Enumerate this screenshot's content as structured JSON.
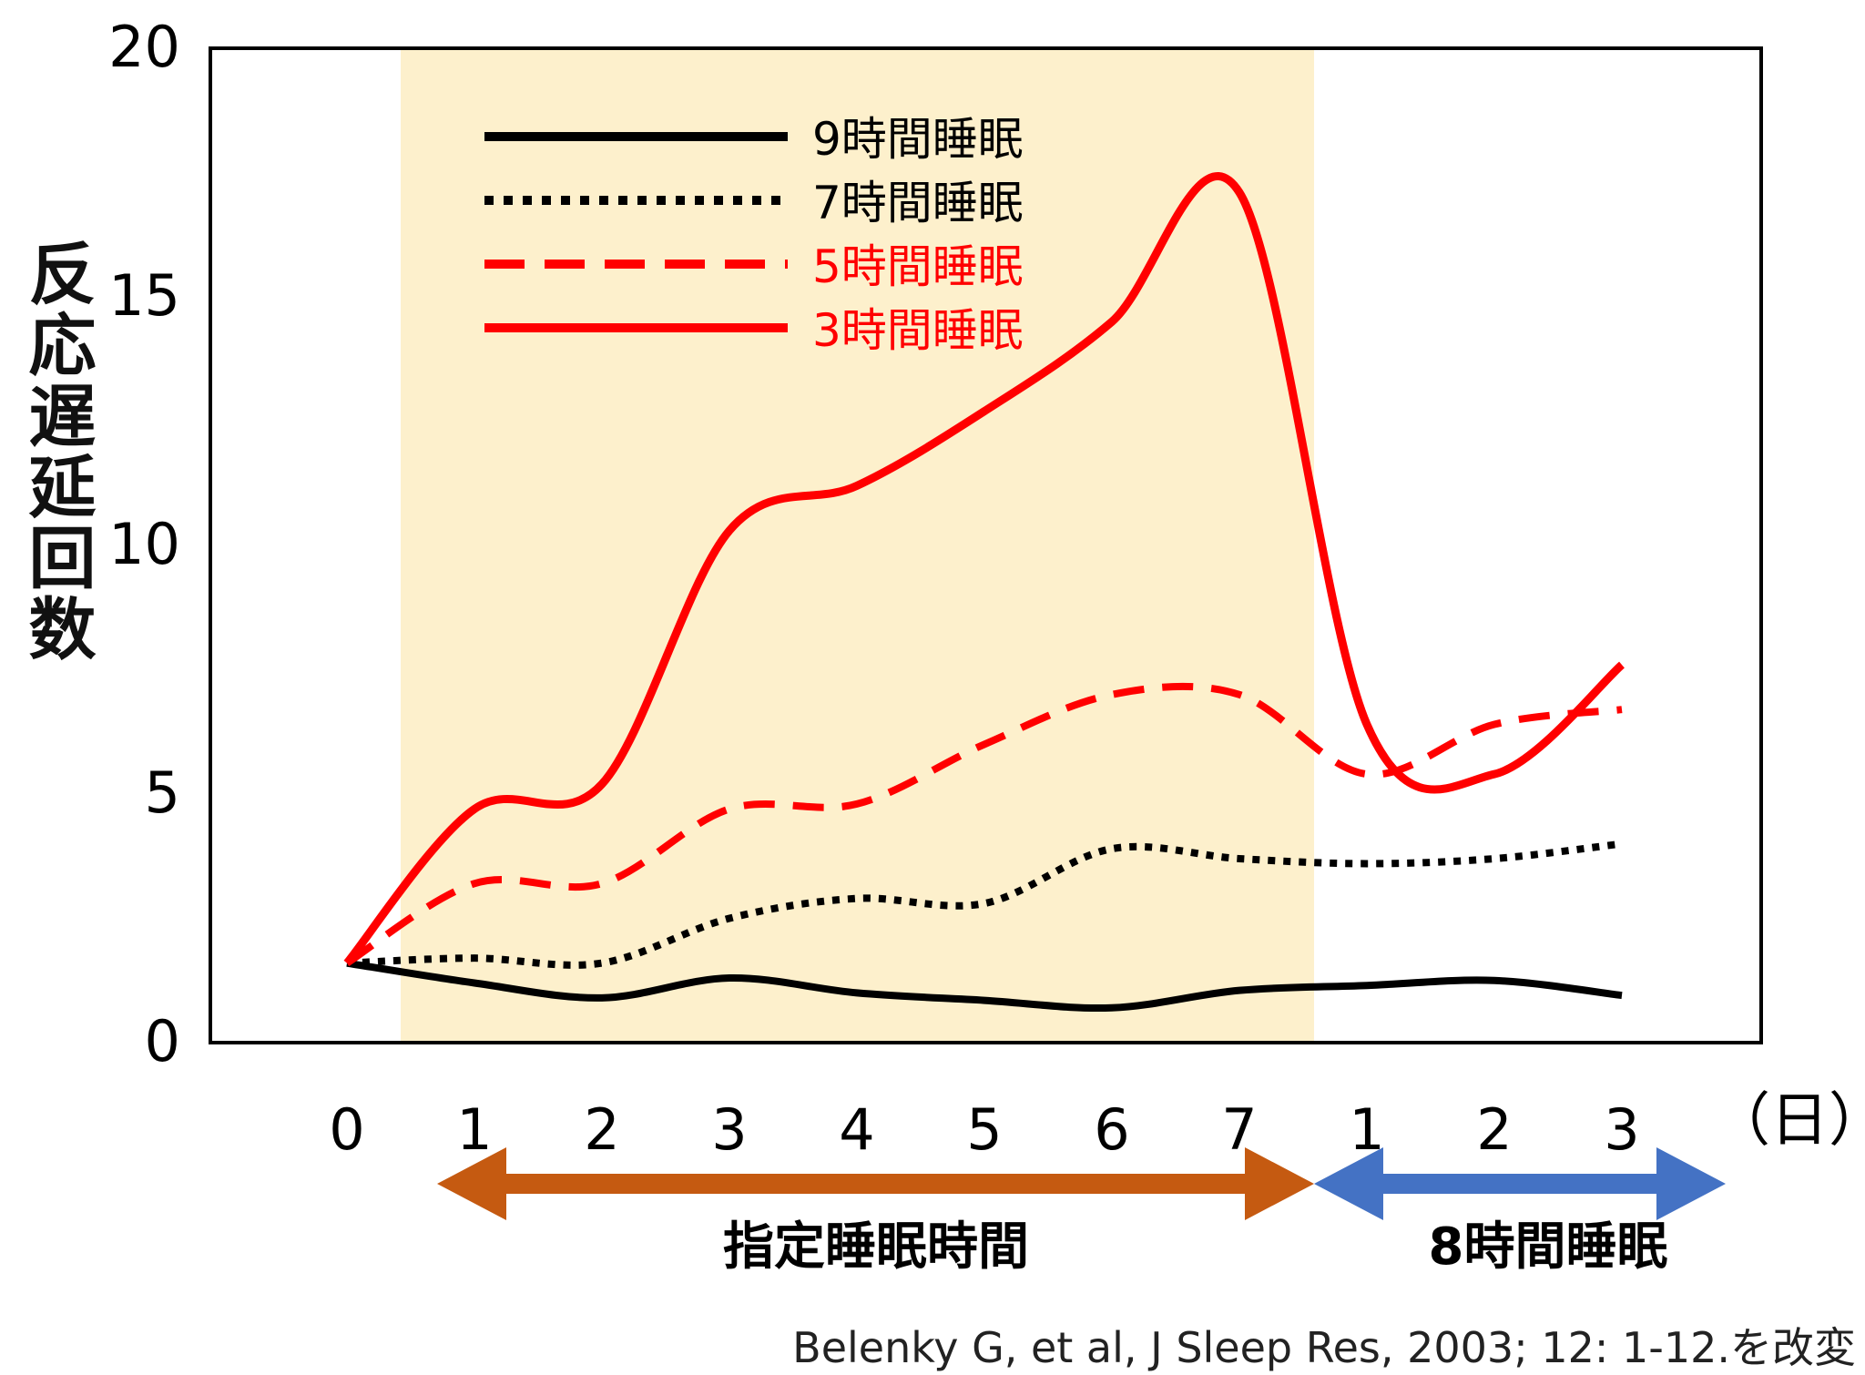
{
  "chart_data": {
    "type": "line",
    "ylabel": "反応遅延回数",
    "xunit": "（日）",
    "categories": [
      "0",
      "1",
      "2",
      "3",
      "4",
      "5",
      "6",
      "7",
      "1",
      "2",
      "3"
    ],
    "yticks": [
      "0",
      "5",
      "10",
      "15",
      "20"
    ],
    "ylim": [
      0,
      20
    ],
    "series": [
      {
        "name": "9時間睡眠",
        "color": "#000000",
        "style": "solid",
        "values": [
          1.6,
          1.2,
          0.9,
          1.3,
          1.0,
          0.85,
          0.7,
          1.05,
          1.15,
          1.25,
          0.95
        ]
      },
      {
        "name": "7時間睡眠",
        "color": "#000000",
        "style": "dotted",
        "values": [
          1.6,
          1.7,
          1.6,
          2.5,
          2.9,
          2.8,
          3.9,
          3.7,
          3.6,
          3.7,
          4.0
        ]
      },
      {
        "name": "5時間睡眠",
        "color": "#ff0000",
        "style": "dashed",
        "values": [
          1.6,
          3.2,
          3.2,
          4.7,
          4.8,
          6.0,
          7.0,
          7.0,
          5.4,
          6.4,
          6.7
        ]
      },
      {
        "name": "3時間睡眠",
        "color": "#ff0000",
        "style": "solid",
        "values": [
          1.6,
          4.7,
          5.2,
          10.3,
          11.2,
          12.7,
          14.5,
          17.1,
          6.4,
          5.4,
          7.6
        ]
      }
    ],
    "shaded_region": {
      "from_index": 1,
      "to_index": 7,
      "color": "#fdf0cc"
    },
    "phases": [
      {
        "label": "指定睡眠時間",
        "color": "#c55a11"
      },
      {
        "label": "8時間睡眠",
        "color": "#4472c4"
      }
    ],
    "legend_position": "top-left",
    "grid": false
  },
  "citation": "Belenky G, et al, J Sleep Res, 2003; 12: 1-12.を改変"
}
